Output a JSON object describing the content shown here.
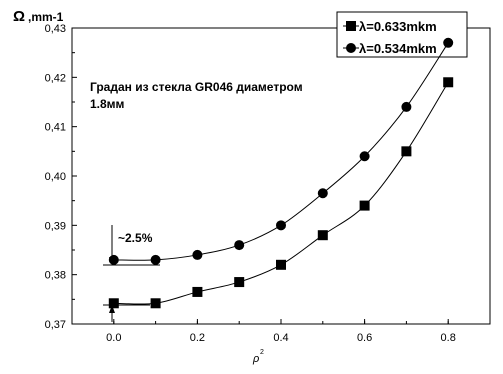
{
  "chart_data": {
    "type": "line",
    "ylabel": ",mm-1",
    "ylabel_symbol": "Ω",
    "xlabel": "ρ",
    "xlabel_superscript": "2",
    "annotation": "Градан из стекла GR046 диаметром",
    "annotation_line2": "1.8мм",
    "difference_label": "~2.5%",
    "xlim": [
      -0.1,
      0.9
    ],
    "ylim": [
      0.37,
      0.43
    ],
    "x_ticks": [
      0.0,
      0.2,
      0.4,
      0.6,
      0.8
    ],
    "x_tick_labels": [
      "0.0",
      "0.2",
      "0.4",
      "0.6",
      "0.8"
    ],
    "y_ticks": [
      0.37,
      0.38,
      0.39,
      0.4,
      0.41,
      0.42,
      0.43
    ],
    "y_tick_labels": [
      "0,37",
      "0,38",
      "0,39",
      "0,40",
      "0,41",
      "0,42",
      "0,43"
    ],
    "grid": false,
    "legend_position": "top-right",
    "x": [
      0.0,
      0.1,
      0.2,
      0.3,
      0.4,
      0.5,
      0.6,
      0.7,
      0.8
    ],
    "series": [
      {
        "name": "λ=0.633mkm",
        "marker": "square",
        "values": [
          0.3742,
          0.3742,
          0.3765,
          0.3785,
          0.382,
          0.388,
          0.394,
          0.405,
          0.419
        ]
      },
      {
        "name": "λ=0.534mkm",
        "marker": "circle",
        "values": [
          0.383,
          0.383,
          0.384,
          0.386,
          0.39,
          0.3965,
          0.404,
          0.414,
          0.427
        ]
      }
    ]
  }
}
